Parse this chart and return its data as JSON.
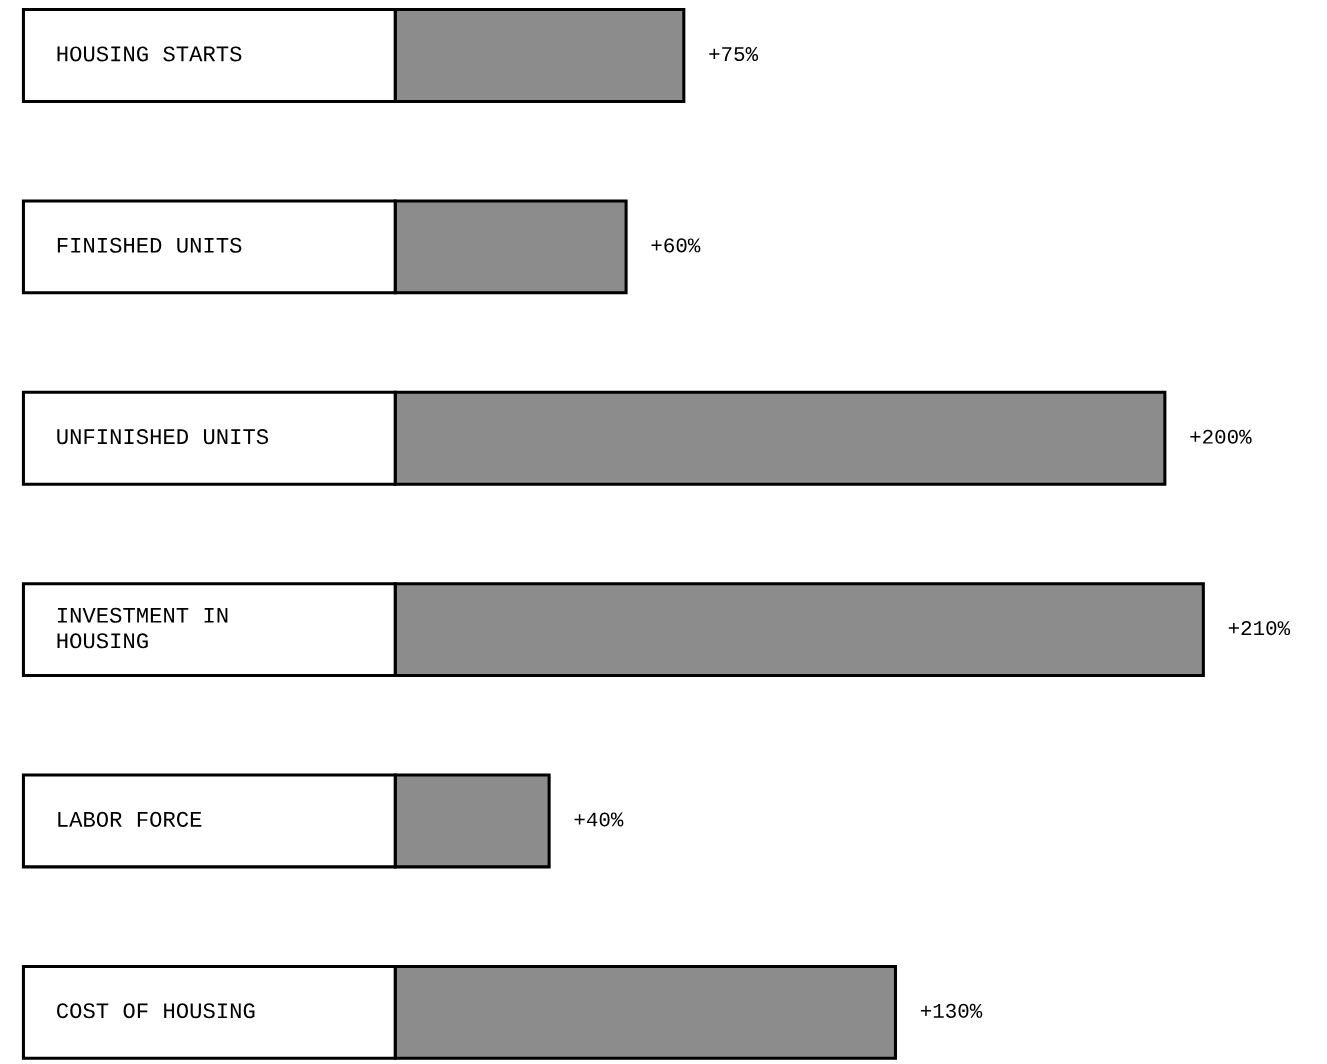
{
  "chart_data": {
    "type": "bar",
    "orientation": "horizontal",
    "categories": [
      "HOUSING STARTS",
      "FINISHED UNITS",
      "UNFINISHED UNITS",
      "INVESTMENT IN\nHOUSING",
      "LABOR FORCE",
      "COST OF HOUSING"
    ],
    "values": [
      75,
      60,
      200,
      210,
      40,
      130
    ],
    "value_labels": [
      "+75%",
      "+60%",
      "+200%",
      "+210%",
      "+40%",
      "+130%"
    ],
    "color": "#8c8c8c"
  }
}
